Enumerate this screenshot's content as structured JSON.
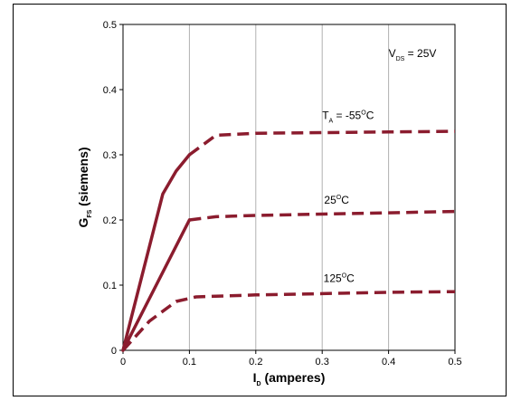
{
  "chart_data": {
    "type": "line",
    "xlabel": {
      "main": "I",
      "sub": "D",
      "rest": " (amperes)"
    },
    "ylabel": {
      "main": "G",
      "sub": "FS",
      "rest": " (siemens)"
    },
    "xlim": [
      0,
      0.5
    ],
    "ylim": [
      0,
      0.5
    ],
    "xticks": [
      "0",
      "0.1",
      "0.2",
      "0.3",
      "0.4",
      "0.5"
    ],
    "yticks": [
      "0",
      "0.1",
      "0.2",
      "0.3",
      "0.4",
      "0.5"
    ],
    "grid": "vertical",
    "series_color": "#8b1c2e",
    "series": [
      {
        "label": {
          "pre": "T",
          "sub": "A",
          "mid": " = -55",
          "sup": "O",
          "post": "C"
        },
        "solid": [
          [
            0.0,
            0.0
          ],
          [
            0.03,
            0.12
          ],
          [
            0.06,
            0.24
          ],
          [
            0.08,
            0.275
          ],
          [
            0.1,
            0.3
          ]
        ],
        "dashed": [
          [
            0.1,
            0.3
          ],
          [
            0.14,
            0.33
          ],
          [
            0.2,
            0.333
          ],
          [
            0.3,
            0.334
          ],
          [
            0.4,
            0.335
          ],
          [
            0.5,
            0.336
          ]
        ]
      },
      {
        "label": {
          "pre": "",
          "sub": "",
          "mid": "25",
          "sup": "O",
          "post": "C"
        },
        "solid": [
          [
            0.0,
            0.0
          ],
          [
            0.05,
            0.1
          ],
          [
            0.1,
            0.2
          ]
        ],
        "dashed": [
          [
            0.0,
            0.0
          ],
          [
            0.05,
            0.1
          ],
          [
            0.1,
            0.2
          ]
        ],
        "dashed_tail": [
          [
            0.1,
            0.2
          ],
          [
            0.14,
            0.205
          ],
          [
            0.2,
            0.207
          ],
          [
            0.3,
            0.209
          ],
          [
            0.4,
            0.211
          ],
          [
            0.5,
            0.213
          ]
        ]
      },
      {
        "label": {
          "pre": "",
          "sub": "",
          "mid": "125",
          "sup": "O",
          "post": "C"
        },
        "dashed": [
          [
            0.0,
            0.0
          ],
          [
            0.04,
            0.045
          ],
          [
            0.08,
            0.075
          ],
          [
            0.11,
            0.082
          ],
          [
            0.2,
            0.085
          ],
          [
            0.3,
            0.087
          ],
          [
            0.4,
            0.089
          ],
          [
            0.5,
            0.09
          ]
        ]
      }
    ],
    "annotation": {
      "pre": "V",
      "sub": "DS",
      "post": " = 25V"
    }
  }
}
